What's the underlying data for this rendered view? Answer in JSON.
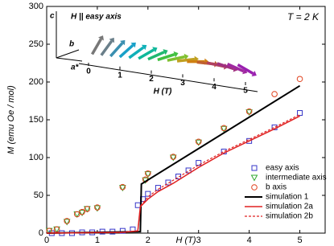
{
  "chart_data": {
    "type": "scatter",
    "xlabel": "H (T)",
    "ylabel": "M (emu Oe / mol)",
    "annotation": "T = 2 K",
    "xlim": [
      0,
      5.5
    ],
    "ylim": [
      0,
      300
    ],
    "xticks": [
      0,
      1,
      2,
      3,
      4,
      5
    ],
    "yticks": [
      0,
      50,
      100,
      150,
      200,
      250,
      300
    ],
    "legend": "lower right",
    "series": [
      {
        "name": "easy axis",
        "color": "#3535c8",
        "marker": "square",
        "x": [
          0.1,
          0.3,
          0.5,
          0.7,
          0.9,
          1.1,
          1.3,
          1.5,
          1.7,
          1.8,
          1.9,
          2.0,
          2.2,
          2.4,
          2.6,
          2.8,
          3.0,
          3.5,
          4.0,
          4.5,
          5.0
        ],
        "values": [
          0,
          0,
          0,
          1,
          1,
          2,
          2,
          3,
          5,
          37,
          45,
          52,
          60,
          67,
          75,
          83,
          93,
          108,
          122,
          140,
          159
        ]
      },
      {
        "name": "intermediate axis",
        "color": "#2ea82e",
        "marker": "triangle-down",
        "x": [
          0.05,
          0.2,
          0.4,
          0.6,
          0.7,
          0.8,
          1.0,
          1.5,
          1.95,
          2.0,
          2.5,
          3.0,
          3.5,
          4.0
        ],
        "values": [
          3,
          5,
          15,
          25,
          27,
          32,
          33,
          60,
          70,
          78,
          100,
          120,
          138,
          160
        ]
      },
      {
        "name": "b axis",
        "color": "#e0401c",
        "marker": "circle",
        "x": [
          0.05,
          0.2,
          0.4,
          0.6,
          0.7,
          0.8,
          1.0,
          1.5,
          1.95,
          2.0,
          2.5,
          3.0,
          3.5,
          4.0,
          4.5,
          5.0
        ],
        "values": [
          3,
          5,
          16,
          25,
          28,
          32,
          34,
          61,
          71,
          79,
          101,
          121,
          139,
          161,
          184,
          204
        ]
      },
      {
        "name": "simulation 1",
        "color": "#000000",
        "linestyle": "solid",
        "linewidth": 2,
        "x": [
          0,
          1.85,
          1.87,
          5.0
        ],
        "values": [
          0,
          2,
          65,
          195
        ]
      },
      {
        "name": "simulation 2a",
        "color": "#e02020",
        "linestyle": "solid",
        "linewidth": 1.5,
        "x": [
          0,
          1.5,
          1.8,
          1.85,
          2.0,
          2.2,
          2.5,
          3.0,
          3.5,
          4.0,
          4.5,
          5.0
        ],
        "values": [
          0,
          1,
          3,
          35,
          45,
          55,
          66,
          87,
          106,
          122,
          138,
          155
        ]
      },
      {
        "name": "simulation 2b",
        "color": "#e02020",
        "linestyle": "dashed",
        "linewidth": 1.2,
        "x": [
          0,
          1.5,
          1.8,
          1.85,
          2.0,
          2.2,
          2.5,
          3.0,
          3.5,
          4.0,
          4.5,
          5.0
        ],
        "values": [
          0,
          1,
          3,
          36,
          48,
          58,
          70,
          90,
          108,
          124,
          140,
          157
        ]
      }
    ],
    "inset": {
      "title": "H || easy axis",
      "axes": [
        "c",
        "b",
        "a*"
      ],
      "xlabel": "H (T)",
      "xlim": [
        0,
        5
      ],
      "xticks": [
        0,
        1,
        2,
        3,
        4,
        5
      ]
    }
  }
}
